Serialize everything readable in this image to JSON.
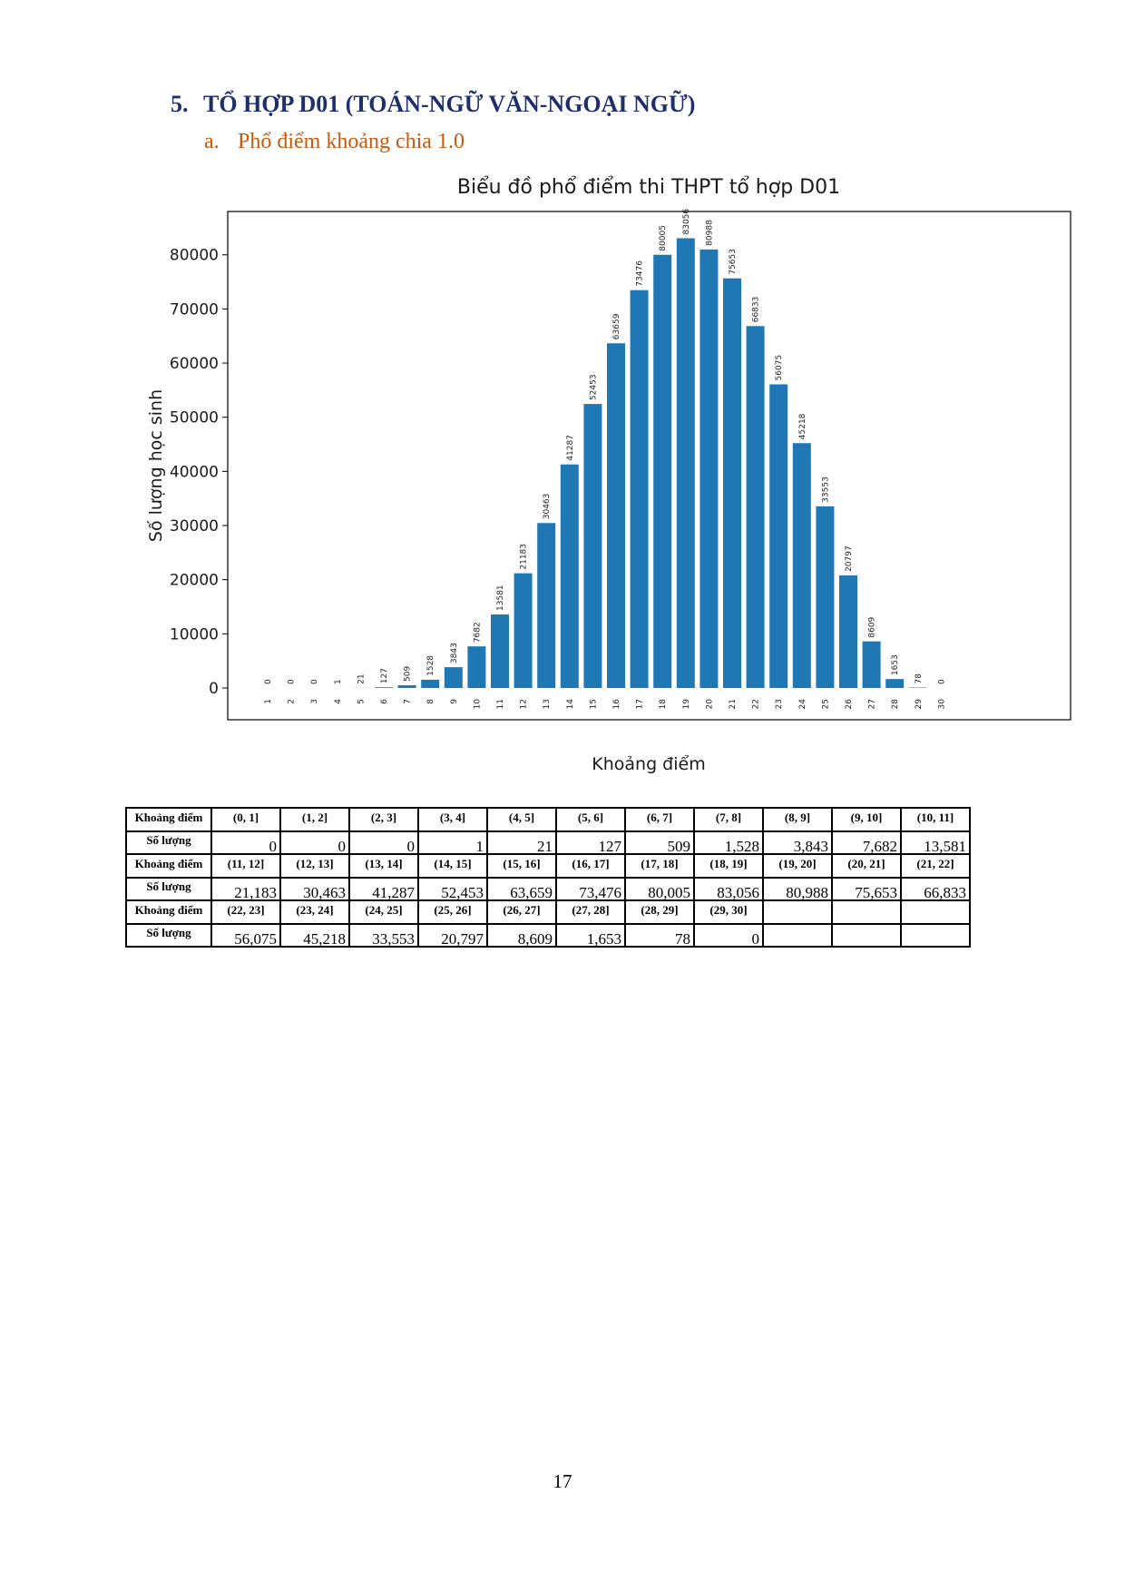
{
  "section": {
    "number": "5.",
    "title": "TỔ HỢP D01 (TOÁN-NGỮ VĂN-NGOẠI NGỮ)",
    "sub_number": "a.",
    "sub_title": "Phổ điểm khoảng chia 1.0"
  },
  "chart_data": {
    "type": "bar",
    "title": "Biểu đồ phổ điểm thi THPT tổ hợp D01",
    "xlabel": "Khoảng điểm",
    "ylabel": "Số lượng học sinh",
    "categories": [
      "1",
      "2",
      "3",
      "4",
      "5",
      "6",
      "7",
      "8",
      "9",
      "10",
      "11",
      "12",
      "13",
      "14",
      "15",
      "16",
      "17",
      "18",
      "19",
      "20",
      "21",
      "22",
      "23",
      "24",
      "25",
      "26",
      "27",
      "28",
      "29",
      "30"
    ],
    "values": [
      0,
      0,
      0,
      1,
      21,
      127,
      509,
      1528,
      3843,
      7682,
      13581,
      21183,
      30463,
      41287,
      52453,
      63659,
      73476,
      80005,
      83056,
      80988,
      75653,
      66833,
      56075,
      45218,
      33553,
      20797,
      8609,
      1653,
      78,
      0
    ],
    "yticks": [
      "0",
      "10000",
      "20000",
      "30000",
      "40000",
      "50000",
      "60000",
      "70000",
      "80000"
    ],
    "ylim": [
      0,
      88000
    ],
    "bar_color": "#1f77b4",
    "grid": false,
    "legend": "none"
  },
  "table": {
    "range_label": "Khoảng điểm",
    "count_label": "Số lượng",
    "groups": [
      {
        "ranges": [
          "(0, 1]",
          "(1, 2]",
          "(2, 3]",
          "(3, 4]",
          "(4, 5]",
          "(5, 6]",
          "(6, 7]",
          "(7, 8]",
          "(8, 9]",
          "(9, 10]",
          "(10, 11]"
        ],
        "counts": [
          "0",
          "0",
          "0",
          "1",
          "21",
          "127",
          "509",
          "1,528",
          "3,843",
          "7,682",
          "13,581"
        ]
      },
      {
        "ranges": [
          "(11, 12]",
          "(12, 13]",
          "(13, 14]",
          "(14, 15]",
          "(15, 16]",
          "(16, 17]",
          "(17, 18]",
          "(18, 19]",
          "(19, 20]",
          "(20, 21]",
          "(21, 22]"
        ],
        "counts": [
          "21,183",
          "30,463",
          "41,287",
          "52,453",
          "63,659",
          "73,476",
          "80,005",
          "83,056",
          "80,988",
          "75,653",
          "66,833"
        ]
      },
      {
        "ranges": [
          "(22, 23]",
          "(23, 24]",
          "(24, 25]",
          "(25, 26]",
          "(26, 27]",
          "(27, 28]",
          "(28, 29]",
          "(29, 30]",
          "",
          "",
          ""
        ],
        "counts": [
          "56,075",
          "45,218",
          "33,553",
          "20,797",
          "8,609",
          "1,653",
          "78",
          "0",
          "",
          "",
          ""
        ]
      }
    ]
  },
  "page_number": "17"
}
